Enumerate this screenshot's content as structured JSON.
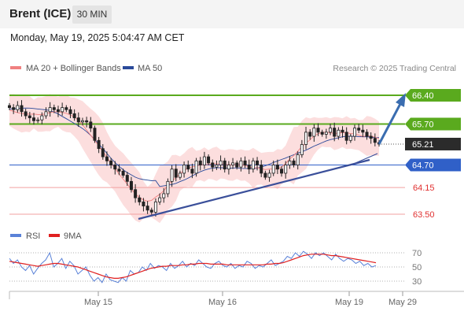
{
  "header": {
    "title": "Brent (ICE)",
    "timeframe": "30 MIN"
  },
  "datetime": "Monday, May 19, 2025 5:04:47 AM CET",
  "legend": [
    {
      "label": "MA 20 + Bollinger Bands",
      "color": "#f08080"
    },
    {
      "label": "MA 50",
      "color": "#2a4a9a"
    }
  ],
  "watermark": "Research © 2025 Trading Central",
  "colors": {
    "resistance": "#5aaa1e",
    "support_blue": "#3060c8",
    "support_red": "#f2a0a0",
    "trend": "#3a4f9a",
    "arrow": "#3a6db0",
    "candle": "#222222",
    "band": "#fbd3d3"
  },
  "chart_data": [
    {
      "type": "candlestick",
      "title": "Brent (ICE)",
      "timeframe": "30 MIN",
      "ylim": [
        63.3,
        66.7
      ],
      "x_ticks": [
        "May 15",
        "May 16",
        "May 19",
        "May 29"
      ],
      "last_price": "65.21",
      "levels": [
        {
          "value": "66.40",
          "kind": "resistance"
        },
        {
          "value": "65.70",
          "kind": "resistance"
        },
        {
          "value": "65.21",
          "kind": "last"
        },
        {
          "value": "64.70",
          "kind": "pivot"
        },
        {
          "value": "64.15",
          "kind": "support"
        },
        {
          "value": "63.50",
          "kind": "support"
        }
      ],
      "close_path": [
        66.1,
        66.05,
        66.15,
        66.0,
        65.9,
        65.85,
        65.78,
        65.8,
        65.9,
        66.0,
        66.1,
        66.05,
        66.0,
        66.1,
        66.05,
        65.95,
        65.85,
        65.75,
        65.78,
        65.75,
        65.6,
        65.3,
        65.1,
        64.9,
        64.8,
        64.7,
        64.6,
        64.55,
        64.45,
        64.3,
        64.1,
        63.9,
        63.8,
        63.7,
        63.6,
        63.55,
        63.8,
        63.9,
        64.0,
        64.3,
        64.6,
        64.4,
        64.5,
        64.7,
        64.6,
        64.5,
        64.8,
        64.7,
        64.9,
        64.75,
        64.65,
        64.7,
        64.8,
        64.6,
        64.7,
        64.75,
        64.65,
        64.8,
        64.7,
        64.6,
        64.8,
        64.7,
        64.5,
        64.4,
        64.5,
        64.7,
        64.6,
        64.5,
        64.7,
        64.8,
        64.7,
        64.95,
        65.2,
        65.5,
        65.4,
        65.6,
        65.5,
        65.45,
        65.5,
        65.6,
        65.4,
        65.55,
        65.5,
        65.3,
        65.4,
        65.6,
        65.55,
        65.5,
        65.4,
        65.35,
        65.25,
        65.21
      ]
    },
    {
      "type": "line",
      "title": "RSI",
      "series": [
        {
          "name": "RSI",
          "color": "#5a82d8"
        },
        {
          "name": "9MA",
          "color": "#e02020"
        }
      ],
      "y_ticks": [
        "70",
        "50",
        "30"
      ],
      "rsi": [
        62,
        55,
        60,
        50,
        45,
        52,
        40,
        48,
        55,
        60,
        70,
        50,
        55,
        62,
        48,
        58,
        52,
        40,
        45,
        50,
        38,
        30,
        35,
        28,
        40,
        32,
        30,
        28,
        35,
        30,
        45,
        40,
        42,
        50,
        45,
        55,
        48,
        52,
        50,
        45,
        55,
        48,
        52,
        58,
        50,
        55,
        52,
        60,
        55,
        50,
        48,
        55,
        58,
        52,
        50,
        55,
        48,
        52,
        50,
        58,
        55,
        48,
        52,
        50,
        55,
        60,
        52,
        55,
        58,
        65,
        62,
        70,
        65,
        72,
        68,
        62,
        70,
        66,
        70,
        65,
        60,
        68,
        62,
        58,
        62,
        60,
        55,
        58,
        52,
        55,
        50,
        52
      ],
      "ma9": [
        58,
        57,
        56,
        55,
        54,
        53,
        52,
        51,
        52,
        53,
        54,
        55,
        55,
        54,
        53,
        52,
        51,
        50,
        48,
        46,
        44,
        42,
        40,
        38,
        36,
        35,
        34,
        34,
        35,
        36,
        38,
        40,
        42,
        44,
        46,
        48,
        49,
        50,
        51,
        51,
        52,
        52,
        52,
        53,
        53,
        54,
        54,
        55,
        55,
        55,
        54,
        54,
        54,
        54,
        53,
        53,
        53,
        53,
        53,
        53,
        53,
        53,
        53,
        53,
        54,
        54,
        55,
        55,
        56,
        58,
        60,
        62,
        64,
        66,
        67,
        68,
        68,
        68,
        68,
        67,
        66,
        66,
        65,
        64,
        63,
        62,
        61,
        60,
        59,
        58,
        57,
        56
      ]
    }
  ]
}
